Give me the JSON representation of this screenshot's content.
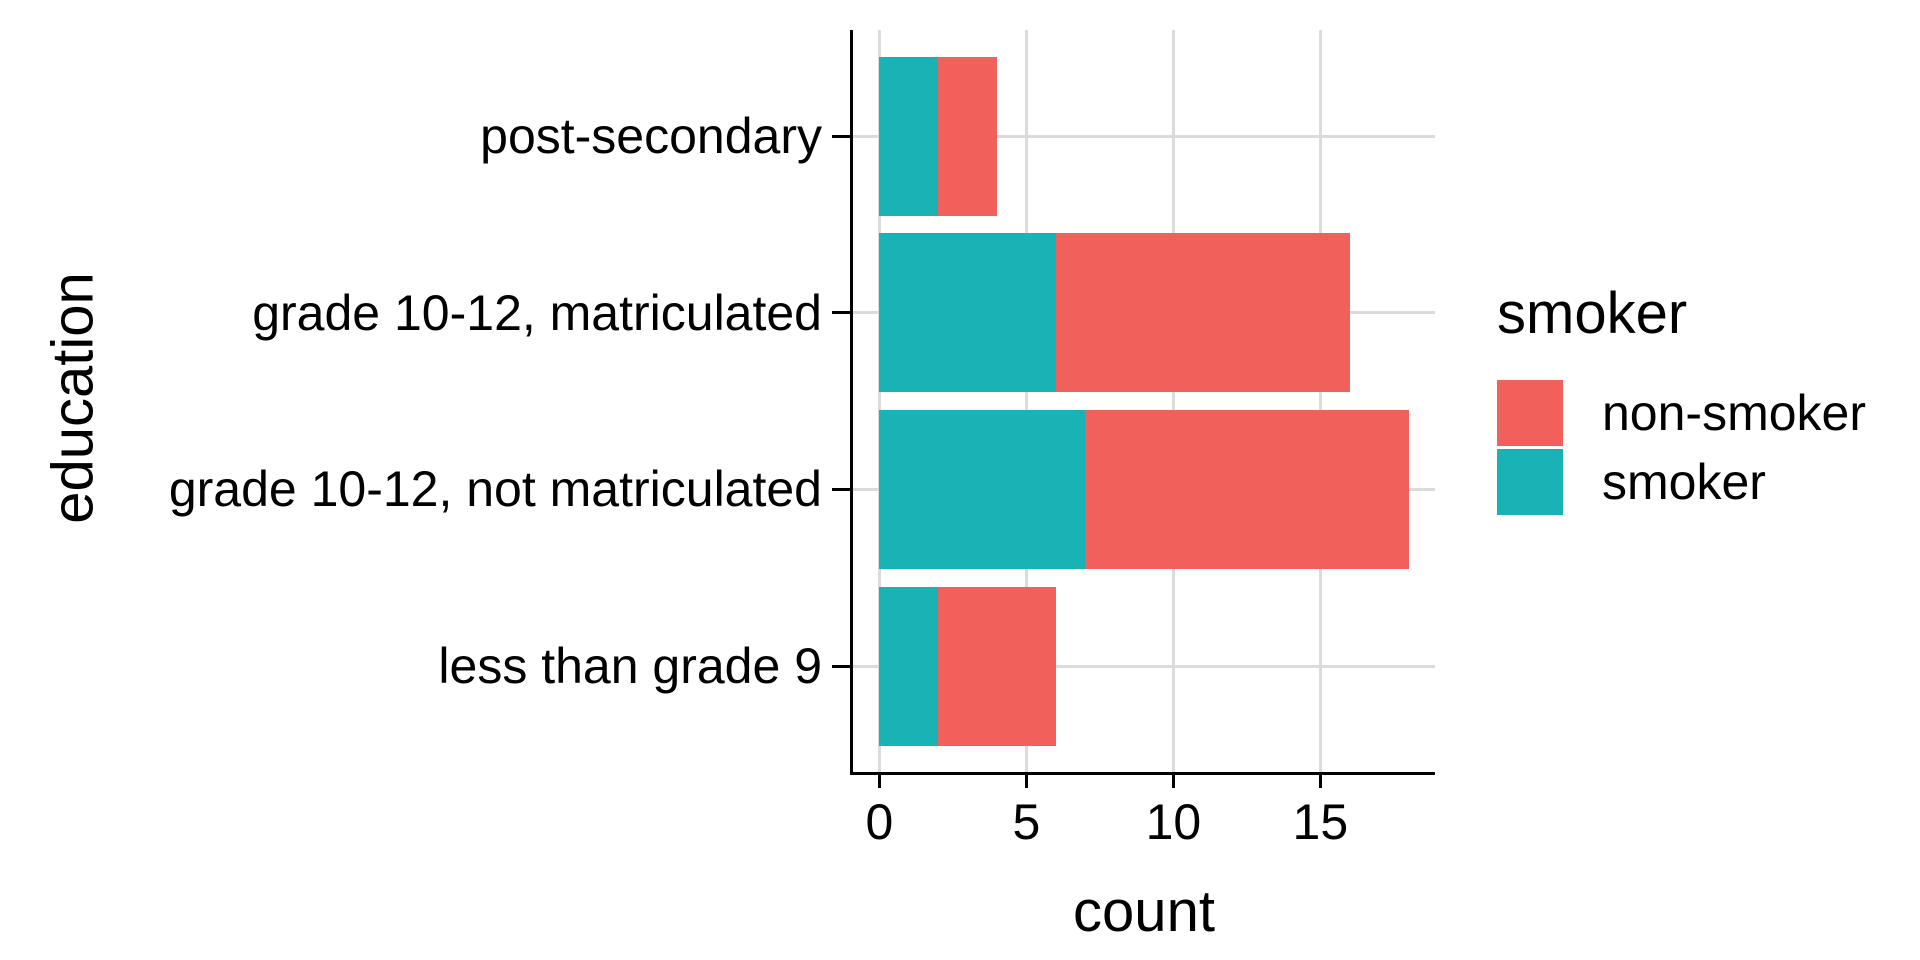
{
  "figure": {
    "background": "#FFFFFF"
  },
  "chart_data": {
    "type": "bar",
    "orientation": "horizontal",
    "stacked": true,
    "title": "",
    "xlabel": "count",
    "ylabel": "education",
    "categories": [
      "post-secondary",
      "grade 10-12, matriculated",
      "grade 10-12, not matriculated",
      "less than grade 9"
    ],
    "series": [
      {
        "name": "smoker",
        "color": "#19B3B5",
        "values": [
          2,
          6,
          7,
          2
        ]
      },
      {
        "name": "non-smoker",
        "color": "#F2605C",
        "values": [
          2,
          10,
          11,
          4
        ]
      }
    ],
    "totals": [
      4,
      16,
      18,
      6
    ],
    "xlim": [
      0,
      18
    ],
    "x_ticks": [
      0,
      5,
      10,
      15
    ],
    "grid": true,
    "legend_position": "right",
    "legend_title": "smoker"
  },
  "legend": {
    "title": "smoker",
    "entries": [
      {
        "label": "non-smoker",
        "color": "#F2605C"
      },
      {
        "label": "smoker",
        "color": "#19B3B5"
      }
    ]
  },
  "colors": {
    "smoker": "#19B3B5",
    "non_smoker": "#F2605C",
    "gridline": "#DBDBDB",
    "axis_line": "#000000",
    "text": "#000000"
  }
}
